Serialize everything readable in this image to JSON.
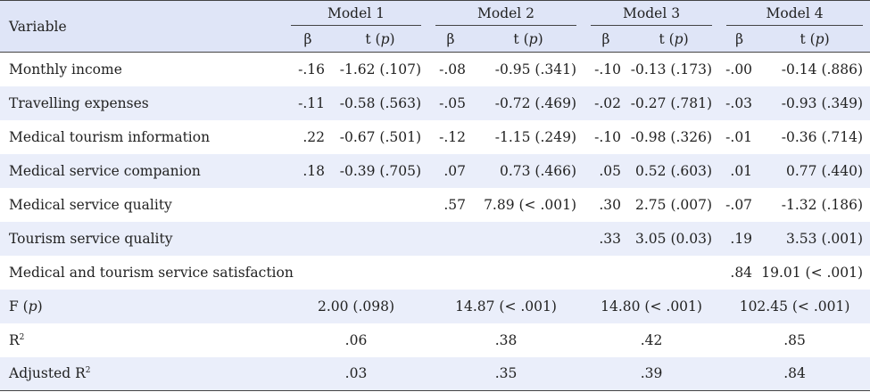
{
  "header": {
    "variable": "Variable",
    "models": [
      "Model 1",
      "Model 2",
      "Model 3",
      "Model 4"
    ],
    "beta": "β",
    "t_prefix": "t (",
    "t_p": "p",
    "t_suffix": ")"
  },
  "rows": [
    {
      "label": "Monthly income",
      "cells": [
        [
          "-.16",
          "-1.62 (.107)"
        ],
        [
          "-.08",
          "-0.95 (.341)"
        ],
        [
          "-.10",
          "-0.13 (.173)"
        ],
        [
          "-.00",
          "-0.14 (.886)"
        ]
      ]
    },
    {
      "label": "Travelling expenses",
      "cells": [
        [
          "-.11",
          "-0.58 (.563)"
        ],
        [
          "-.05",
          "-0.72 (.469)"
        ],
        [
          "-.02",
          "-0.27 (.781)"
        ],
        [
          "-.03",
          "-0.93 (.349)"
        ]
      ]
    },
    {
      "label": "Medical tourism information",
      "cells": [
        [
          ".22",
          "-0.67 (.501)"
        ],
        [
          "-.12",
          "-1.15 (.249)"
        ],
        [
          "-.10",
          "-0.98 (.326)"
        ],
        [
          "-.01",
          "-0.36 (.714)"
        ]
      ]
    },
    {
      "label": "Medical service companion",
      "cells": [
        [
          ".18",
          "-0.39 (.705)"
        ],
        [
          ".07",
          "0.73 (.466)"
        ],
        [
          ".05",
          "0.52 (.603)"
        ],
        [
          ".01",
          "0.77 (.440)"
        ]
      ]
    },
    {
      "label": "Medical service quality",
      "cells": [
        [
          "",
          ""
        ],
        [
          ".57",
          "7.89 (< .001)"
        ],
        [
          ".30",
          "2.75 (.007)"
        ],
        [
          "-.07",
          "-1.32 (.186)"
        ]
      ]
    },
    {
      "label": "Tourism service quality",
      "cells": [
        [
          "",
          ""
        ],
        [
          "",
          ""
        ],
        [
          ".33",
          "3.05 (0.03)"
        ],
        [
          ".19",
          "3.53 (.001)"
        ]
      ]
    },
    {
      "label": "Medical and tourism service satisfaction",
      "cells": [
        [
          "",
          ""
        ],
        [
          "",
          ""
        ],
        [
          "",
          ""
        ],
        [
          ".84",
          "19.01 (< .001)"
        ]
      ]
    }
  ],
  "summary": {
    "f": {
      "label_prefix": "F (",
      "label_p": "p",
      "label_suffix": ")",
      "values": [
        "2.00 (.098)",
        "14.87 (< .001)",
        "14.80 (< .001)",
        "102.45 (< .001)"
      ]
    },
    "r2": {
      "label_base": "R",
      "label_sup": "2",
      "values": [
        ".06",
        ".38",
        ".42",
        ".85"
      ]
    },
    "adj_r2": {
      "label_base": "Adjusted R",
      "label_sup": "2",
      "values": [
        ".03",
        ".35",
        ".39",
        ".84"
      ]
    }
  }
}
